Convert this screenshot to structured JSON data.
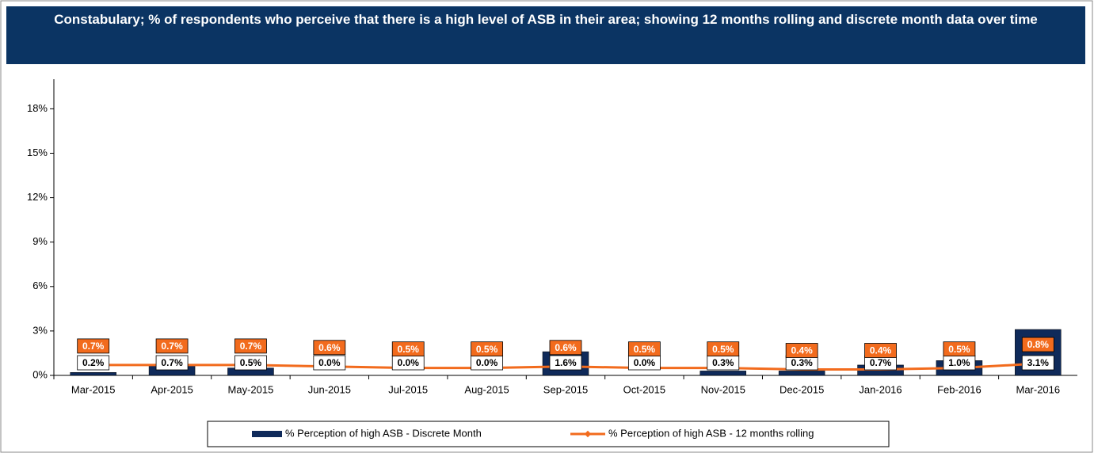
{
  "chart_data": {
    "type": "combo",
    "title": "Constabulary; % of respondents who perceive that there is a high level of ASB in their area; showing 12 months rolling and discrete month data over time",
    "categories": [
      "Mar-2015",
      "Apr-2015",
      "May-2015",
      "Jun-2015",
      "Jul-2015",
      "Aug-2015",
      "Sep-2015",
      "Oct-2015",
      "Nov-2015",
      "Dec-2015",
      "Jan-2016",
      "Feb-2016",
      "Mar-2016"
    ],
    "series": [
      {
        "name": "% Perception of high ASB - Discrete Month",
        "type": "bar",
        "color": "#0f2a5a",
        "values": [
          0.2,
          0.7,
          0.5,
          0.0,
          0.0,
          0.0,
          1.6,
          0.0,
          0.3,
          0.3,
          0.7,
          1.0,
          3.1
        ],
        "value_labels": [
          "0.2%",
          "0.7%",
          "0.5%",
          "0.0%",
          "0.0%",
          "0.0%",
          "1.6%",
          "0.0%",
          "0.3%",
          "0.3%",
          "0.7%",
          "1.0%",
          "3.1%"
        ]
      },
      {
        "name": "% Perception of high ASB - 12 months rolling",
        "type": "line",
        "color": "#f26b1d",
        "values": [
          0.7,
          0.7,
          0.7,
          0.6,
          0.5,
          0.5,
          0.6,
          0.5,
          0.5,
          0.4,
          0.4,
          0.5,
          0.8
        ],
        "value_labels": [
          "0.7%",
          "0.7%",
          "0.7%",
          "0.6%",
          "0.5%",
          "0.5%",
          "0.6%",
          "0.5%",
          "0.5%",
          "0.4%",
          "0.4%",
          "0.5%",
          "0.8%"
        ]
      }
    ],
    "ylim": [
      0,
      20
    ],
    "yticks": [
      {
        "value": 0,
        "label": "0%"
      },
      {
        "value": 3,
        "label": "3%"
      },
      {
        "value": 6,
        "label": "6%"
      },
      {
        "value": 9,
        "label": "9%"
      },
      {
        "value": 12,
        "label": "12%"
      },
      {
        "value": 15,
        "label": "15%"
      },
      {
        "value": 18,
        "label": "18%"
      }
    ],
    "legend": "bottom"
  }
}
